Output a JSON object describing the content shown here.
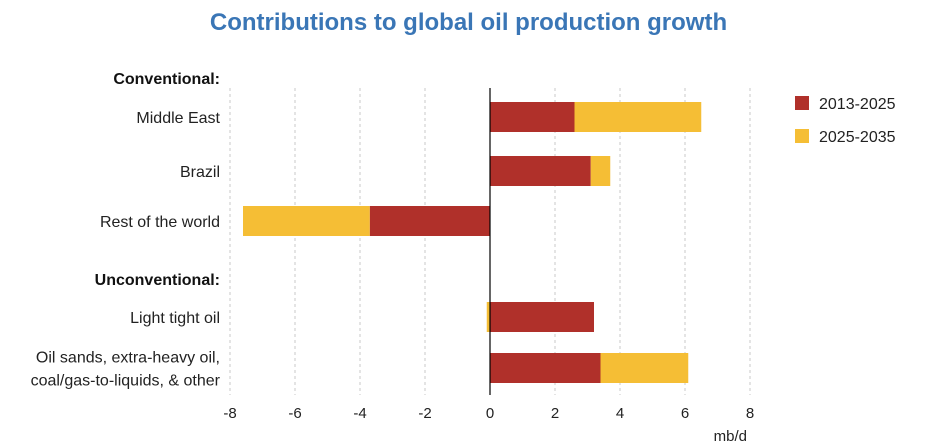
{
  "chart_data": {
    "type": "bar",
    "orientation": "horizontal",
    "stacked": true,
    "title": "Contributions to global oil production growth",
    "xlabel": "mb/d",
    "xlim": [
      -8,
      8
    ],
    "xticks": [
      "-8",
      "-6",
      "-4",
      "-2",
      "0",
      "2",
      "4",
      "6",
      "8"
    ],
    "grid": "vertical dashed",
    "legend_position": "top-right",
    "groups": [
      {
        "label": "Conventional:",
        "categories": [
          "Middle East",
          "Brazil",
          "Rest of the world"
        ]
      },
      {
        "label": "Unconventional:",
        "categories": [
          "Light tight oil",
          "Oil sands, extra-heavy oil,\ncoal/gas-to-liquids, & other"
        ]
      }
    ],
    "categories": [
      "Middle East",
      "Brazil",
      "Rest of the world",
      "Light tight oil",
      "Oil sands, extra-heavy oil,\ncoal/gas-to-liquids, & other"
    ],
    "series": [
      {
        "name": "2013-2025",
        "color": "#b0302a",
        "values": [
          2.6,
          3.1,
          -3.7,
          3.2,
          3.4
        ]
      },
      {
        "name": "2025-2035",
        "color": "#f5be35",
        "values": [
          3.9,
          0.6,
          -3.9,
          -0.1,
          2.7
        ]
      }
    ]
  }
}
